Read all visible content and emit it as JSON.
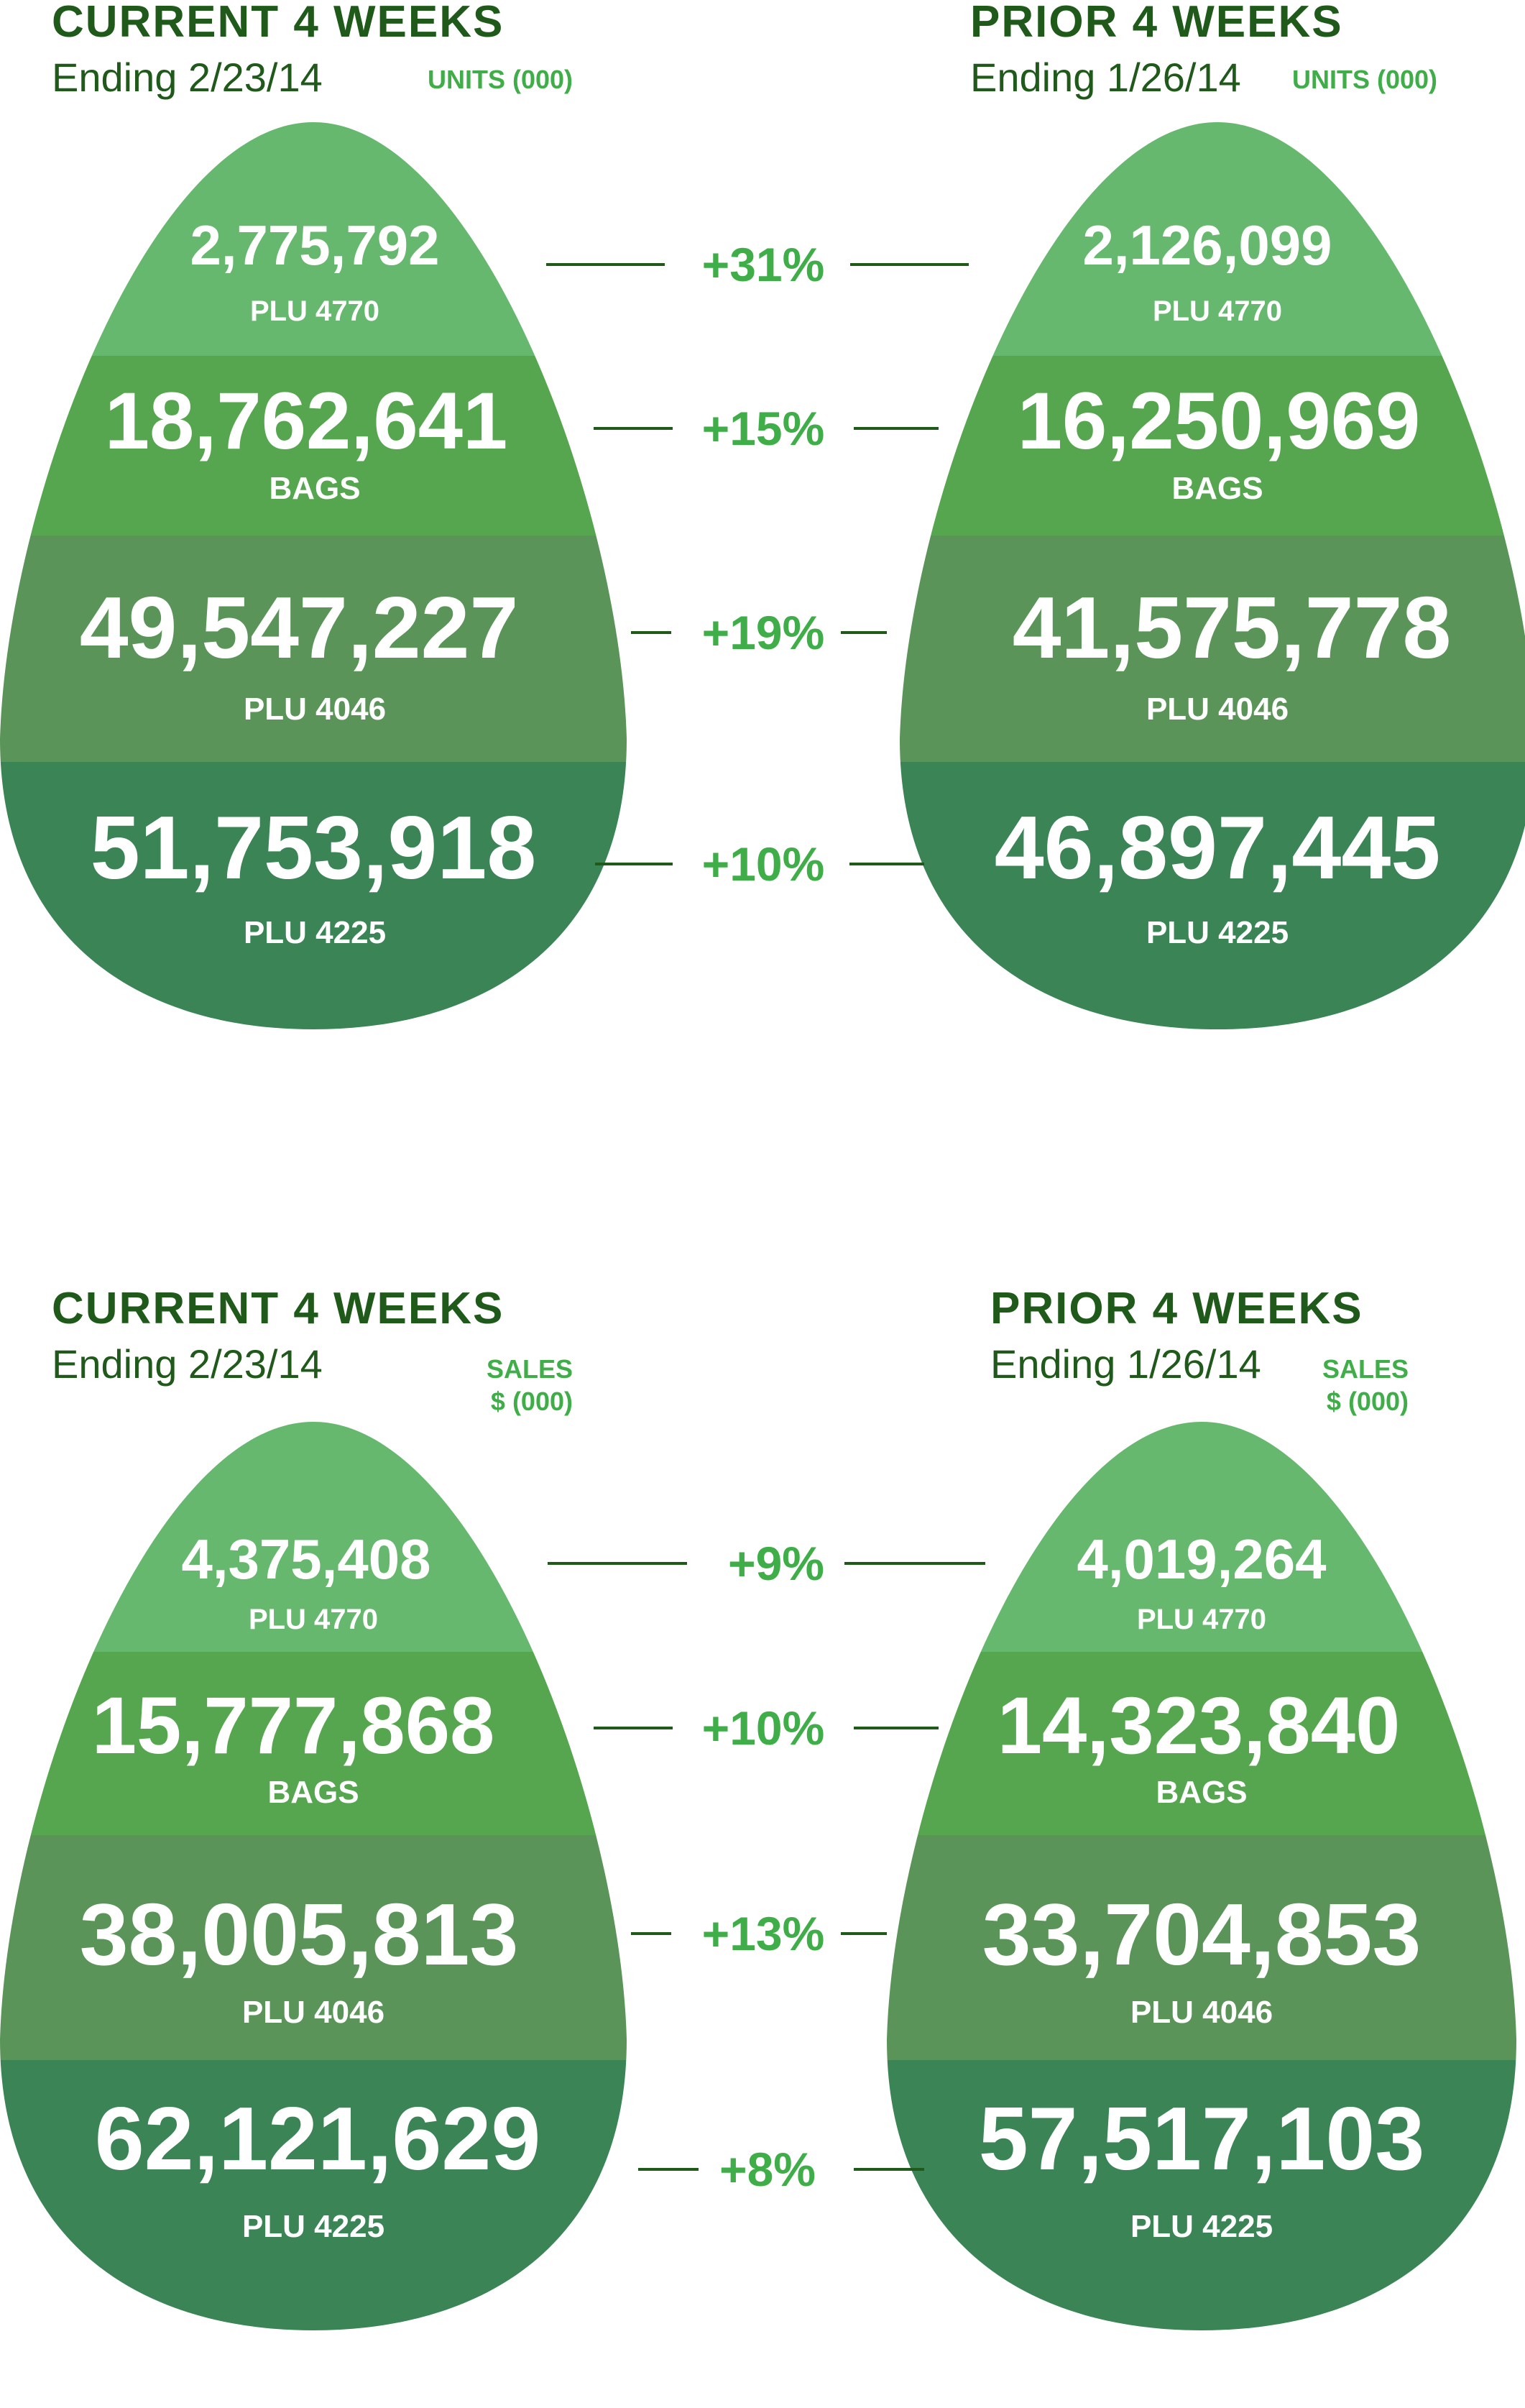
{
  "colors": {
    "tier_top": "#66b86e",
    "tier_bags": "#56a64f",
    "tier_4046": "#5a9458",
    "tier_4225": "#3a8456",
    "header_text": "#1f5a1a",
    "accent_green": "#3fae49",
    "connector": "#1f5a1a"
  },
  "chart_data": [
    {
      "type": "table",
      "metric_line1": "UNITS (000)",
      "metric_line2": "",
      "current": {
        "title": "CURRENT 4 WEEKS",
        "subtitle": "Ending 2/23/14",
        "tiers": [
          {
            "label": "PLU 4770",
            "value": "2,775,792"
          },
          {
            "label": "BAGS",
            "value": "18,762,641"
          },
          {
            "label": "PLU 4046",
            "value": "49,547,227"
          },
          {
            "label": "PLU 4225",
            "value": "51,753,918"
          }
        ]
      },
      "prior": {
        "title": "PRIOR 4 WEEKS",
        "subtitle": "Ending 1/26/14",
        "tiers": [
          {
            "label": "PLU 4770",
            "value": "2,126,099"
          },
          {
            "label": "BAGS",
            "value": "16,250,969"
          },
          {
            "label": "PLU 4046",
            "value": "41,575,778"
          },
          {
            "label": "PLU 4225",
            "value": "46,897,445"
          }
        ]
      },
      "changes": [
        "+31%",
        "+15%",
        "+19%",
        "+10%"
      ]
    },
    {
      "type": "table",
      "metric_line1": "SALES",
      "metric_line2": "$ (000)",
      "current": {
        "title": "CURRENT 4 WEEKS",
        "subtitle": "Ending 2/23/14",
        "tiers": [
          {
            "label": "PLU 4770",
            "value": "4,375,408"
          },
          {
            "label": "BAGS",
            "value": "15,777,868"
          },
          {
            "label": "PLU 4046",
            "value": "38,005,813"
          },
          {
            "label": "PLU 4225",
            "value": "62,121,629"
          }
        ]
      },
      "prior": {
        "title": "PRIOR 4 WEEKS",
        "subtitle": "Ending 1/26/14",
        "tiers": [
          {
            "label": "PLU 4770",
            "value": "4,019,264"
          },
          {
            "label": "BAGS",
            "value": "14,323,840"
          },
          {
            "label": "PLU 4046",
            "value": "33,704,853"
          },
          {
            "label": "PLU 4225",
            "value": "57,517,103"
          }
        ]
      },
      "changes": [
        "+9%",
        "+10%",
        "+13%",
        "+8%"
      ]
    }
  ]
}
